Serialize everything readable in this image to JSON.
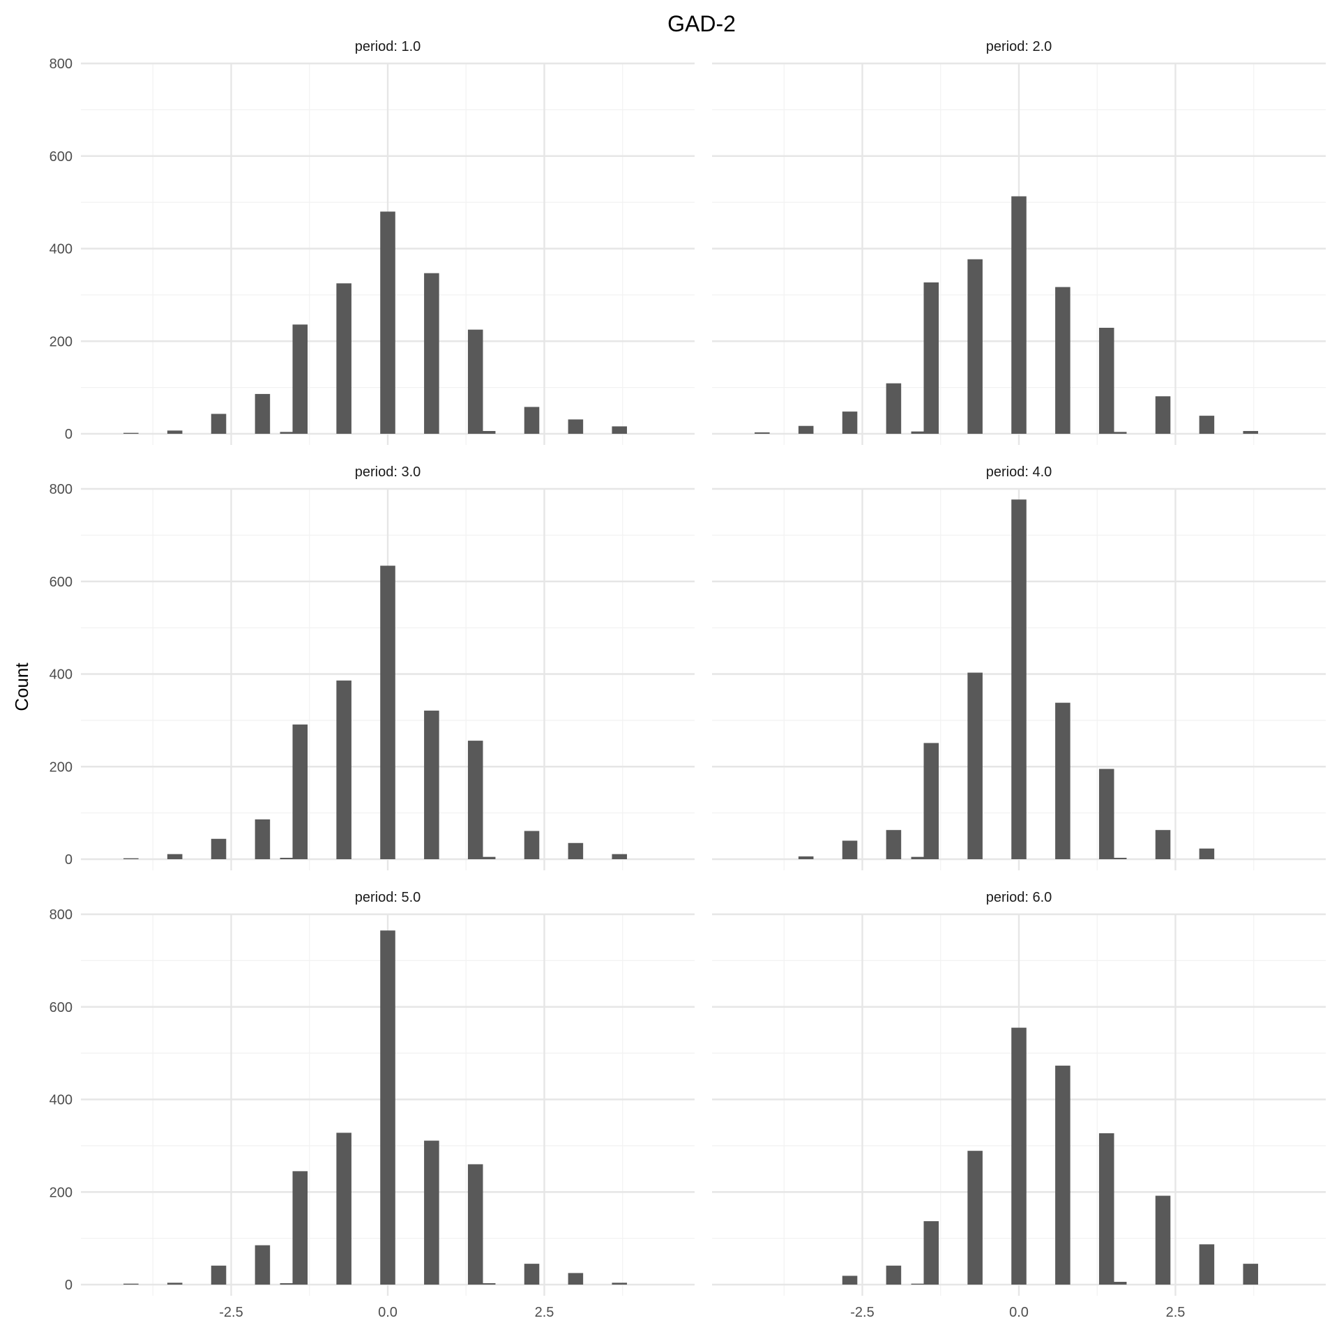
{
  "chart_data": {
    "type": "bar",
    "title": "GAD-2",
    "xlabel": "",
    "ylabel": "Count",
    "layout": "facet_wrap 3 rows x 2 columns",
    "xlim": [
      -4.9,
      4.9
    ],
    "ylim": [
      0,
      800
    ],
    "x_ticks": [
      -2.5,
      0.0,
      2.5
    ],
    "x_tick_labels": [
      "-2.5",
      "0.0",
      "2.5"
    ],
    "y_ticks": [
      0,
      200,
      400,
      600,
      800
    ],
    "y_tick_labels": [
      "0",
      "200",
      "400",
      "600",
      "800"
    ],
    "bar_width": 0.24,
    "bar_color": "#595959",
    "grid": true,
    "panels": [
      {
        "strip_label": "period: 1.0",
        "bars": [
          {
            "x": -4.1,
            "y": 2
          },
          {
            "x": -3.4,
            "y": 7
          },
          {
            "x": -2.7,
            "y": 43
          },
          {
            "x": -2.0,
            "y": 86
          },
          {
            "x": -1.6,
            "y": 4
          },
          {
            "x": -1.4,
            "y": 236
          },
          {
            "x": -0.7,
            "y": 325
          },
          {
            "x": 0.0,
            "y": 480
          },
          {
            "x": 0.7,
            "y": 347
          },
          {
            "x": 1.4,
            "y": 225
          },
          {
            "x": 1.6,
            "y": 6
          },
          {
            "x": 2.3,
            "y": 58
          },
          {
            "x": 3.0,
            "y": 31
          },
          {
            "x": 3.7,
            "y": 16
          }
        ]
      },
      {
        "strip_label": "period: 2.0",
        "bars": [
          {
            "x": -4.1,
            "y": 3
          },
          {
            "x": -3.4,
            "y": 17
          },
          {
            "x": -2.7,
            "y": 48
          },
          {
            "x": -2.0,
            "y": 109
          },
          {
            "x": -1.6,
            "y": 5
          },
          {
            "x": -1.4,
            "y": 327
          },
          {
            "x": -0.7,
            "y": 377
          },
          {
            "x": 0.0,
            "y": 513
          },
          {
            "x": 0.7,
            "y": 317
          },
          {
            "x": 1.4,
            "y": 229
          },
          {
            "x": 1.6,
            "y": 4
          },
          {
            "x": 2.3,
            "y": 81
          },
          {
            "x": 3.0,
            "y": 39
          },
          {
            "x": 3.7,
            "y": 6
          }
        ]
      },
      {
        "strip_label": "period: 3.0",
        "bars": [
          {
            "x": -4.1,
            "y": 2
          },
          {
            "x": -3.4,
            "y": 11
          },
          {
            "x": -2.7,
            "y": 44
          },
          {
            "x": -2.0,
            "y": 86
          },
          {
            "x": -1.6,
            "y": 3
          },
          {
            "x": -1.4,
            "y": 291
          },
          {
            "x": -0.7,
            "y": 386
          },
          {
            "x": 0.0,
            "y": 634
          },
          {
            "x": 0.7,
            "y": 321
          },
          {
            "x": 1.4,
            "y": 256
          },
          {
            "x": 1.6,
            "y": 5
          },
          {
            "x": 2.3,
            "y": 61
          },
          {
            "x": 3.0,
            "y": 35
          },
          {
            "x": 3.7,
            "y": 11
          }
        ]
      },
      {
        "strip_label": "period: 4.0",
        "bars": [
          {
            "x": -3.4,
            "y": 6
          },
          {
            "x": -2.7,
            "y": 40
          },
          {
            "x": -2.0,
            "y": 63
          },
          {
            "x": -1.6,
            "y": 5
          },
          {
            "x": -1.4,
            "y": 251
          },
          {
            "x": -0.7,
            "y": 403
          },
          {
            "x": 0.0,
            "y": 777
          },
          {
            "x": 0.7,
            "y": 338
          },
          {
            "x": 1.4,
            "y": 195
          },
          {
            "x": 1.6,
            "y": 3
          },
          {
            "x": 2.3,
            "y": 63
          },
          {
            "x": 3.0,
            "y": 23
          }
        ]
      },
      {
        "strip_label": "period: 5.0",
        "bars": [
          {
            "x": -4.1,
            "y": 2
          },
          {
            "x": -3.4,
            "y": 4
          },
          {
            "x": -2.7,
            "y": 41
          },
          {
            "x": -2.0,
            "y": 85
          },
          {
            "x": -1.6,
            "y": 3
          },
          {
            "x": -1.4,
            "y": 245
          },
          {
            "x": -0.7,
            "y": 328
          },
          {
            "x": 0.0,
            "y": 765
          },
          {
            "x": 0.7,
            "y": 311
          },
          {
            "x": 1.4,
            "y": 260
          },
          {
            "x": 1.6,
            "y": 3
          },
          {
            "x": 2.3,
            "y": 45
          },
          {
            "x": 3.0,
            "y": 25
          },
          {
            "x": 3.7,
            "y": 4
          }
        ]
      },
      {
        "strip_label": "period: 6.0",
        "bars": [
          {
            "x": -2.7,
            "y": 19
          },
          {
            "x": -2.0,
            "y": 41
          },
          {
            "x": -1.6,
            "y": 2
          },
          {
            "x": -1.4,
            "y": 137
          },
          {
            "x": -0.7,
            "y": 289
          },
          {
            "x": 0.0,
            "y": 555
          },
          {
            "x": 0.7,
            "y": 473
          },
          {
            "x": 1.4,
            "y": 327
          },
          {
            "x": 1.6,
            "y": 6
          },
          {
            "x": 2.3,
            "y": 192
          },
          {
            "x": 3.0,
            "y": 87
          },
          {
            "x": 3.7,
            "y": 45
          }
        ]
      }
    ]
  }
}
